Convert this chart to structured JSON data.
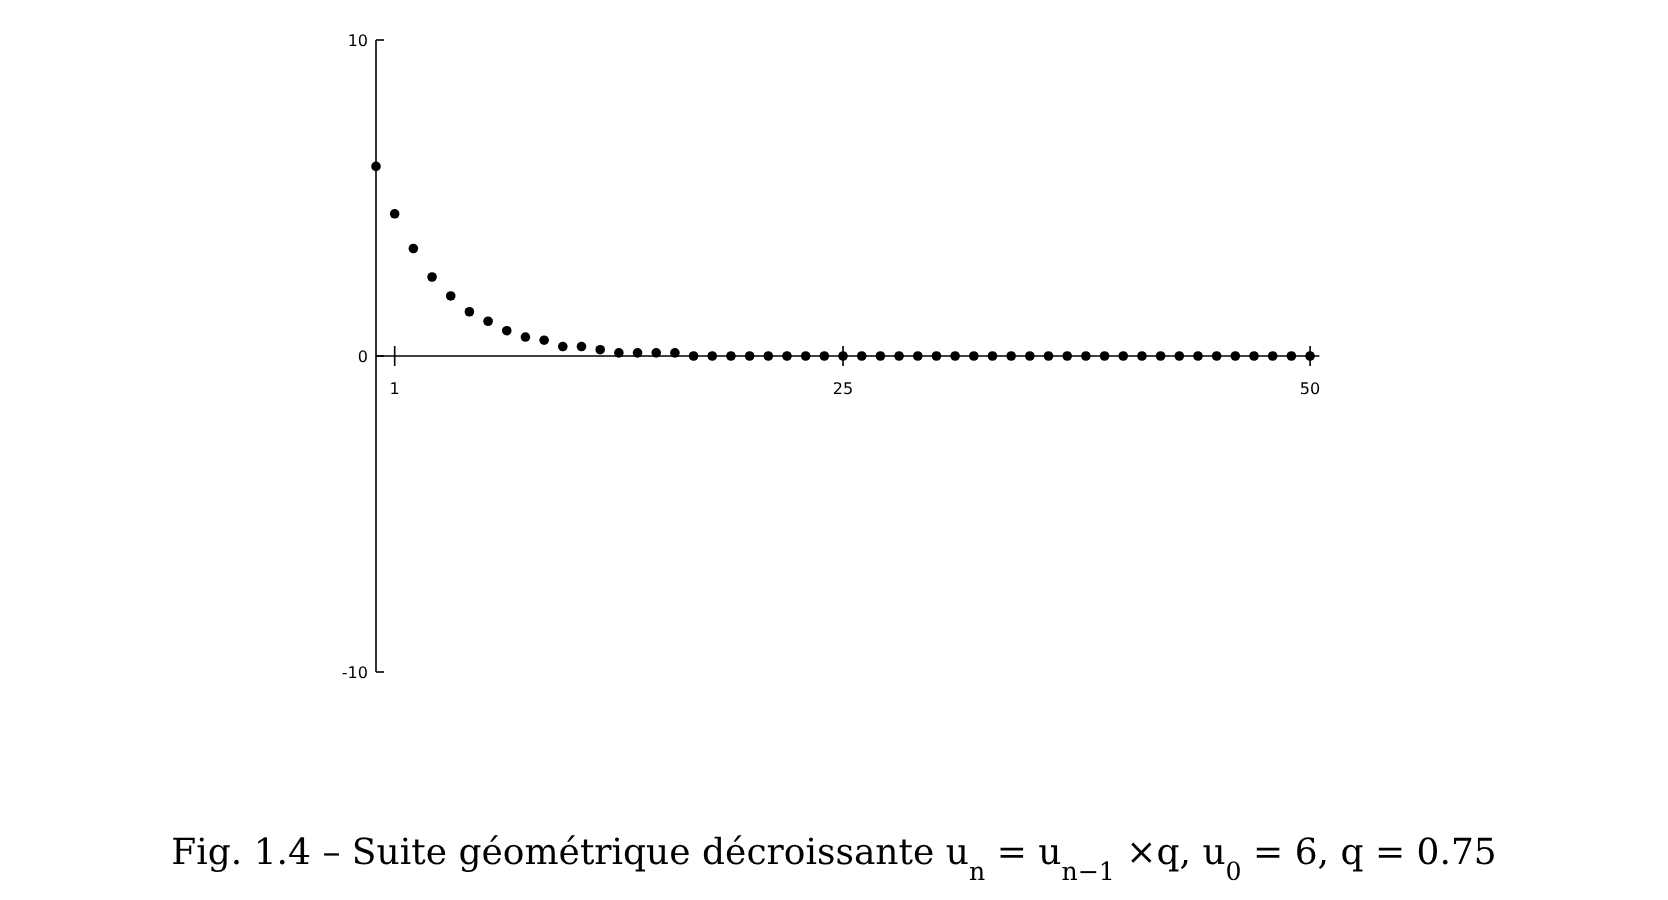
{
  "chart_data": {
    "type": "scatter",
    "x": [
      0,
      1,
      2,
      3,
      4,
      5,
      6,
      7,
      8,
      9,
      10,
      11,
      12,
      13,
      14,
      15,
      16,
      17,
      18,
      19,
      20,
      21,
      22,
      23,
      24,
      25,
      26,
      27,
      28,
      29,
      30,
      31,
      32,
      33,
      34,
      35,
      36,
      37,
      38,
      39,
      40,
      41,
      42,
      43,
      44,
      45,
      46,
      47,
      48,
      49,
      50
    ],
    "series": [
      {
        "color": "#000000",
        "values": [
          6,
          4.5,
          3.4,
          2.5,
          1.9,
          1.4,
          1.1,
          0.8,
          0.6,
          0.5,
          0.3,
          0.3,
          0.2,
          0.1,
          0.1,
          0.1,
          0.1,
          0,
          0,
          0,
          0,
          0,
          0,
          0,
          0,
          0,
          0,
          0,
          0,
          0,
          0,
          0,
          0,
          0,
          0,
          0,
          0,
          0,
          0,
          0,
          0,
          0,
          0,
          0,
          0,
          0,
          0,
          0,
          0,
          0,
          0
        ]
      }
    ],
    "xlim": [
      0,
      50.5
    ],
    "ylim": [
      -10,
      10
    ],
    "xticks": [
      1,
      25,
      50
    ],
    "yticks": [
      -10,
      0,
      10
    ],
    "marker": "circle",
    "annotations": [
      "Fig. 1.4 – Suite géométrique décroissante u$_{n}$ = u$_{n−1}$ ×q, u$_{0}$ = 6, q = 0.75"
    ]
  }
}
